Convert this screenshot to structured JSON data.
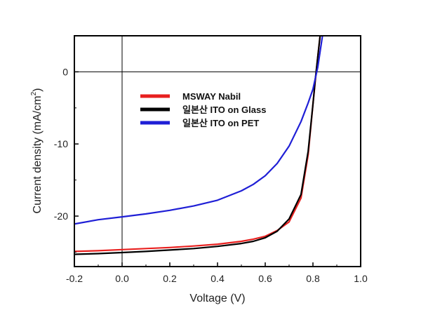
{
  "chart_data": {
    "type": "line",
    "title": "",
    "xlabel": "Voltage (V)",
    "ylabel": "Current density (mA/cm²)",
    "ylabel_main": "Current density (mA/cm",
    "ylabel_sup": "2",
    "ylabel_tail": ")",
    "xlim": [
      -0.2,
      1.0
    ],
    "ylim": [
      -27,
      5
    ],
    "x_ticks": [
      -0.2,
      0.0,
      0.2,
      0.4,
      0.6,
      0.8,
      1.0
    ],
    "x_tick_labels": [
      "-0.2",
      "0.0",
      "0.2",
      "0.4",
      "0.6",
      "0.8",
      "1.0"
    ],
    "y_ticks": [
      0,
      -10,
      -20
    ],
    "y_tick_labels": [
      "0",
      "-10",
      "-20"
    ],
    "zero_lines": true,
    "legend_position": "upper-center",
    "series": [
      {
        "name": "MSWAY Nabil",
        "color": "#e8201f",
        "x": [
          -0.2,
          -0.1,
          0.0,
          0.1,
          0.2,
          0.3,
          0.4,
          0.5,
          0.55,
          0.6,
          0.65,
          0.7,
          0.75,
          0.78,
          0.8,
          0.81,
          0.82,
          0.83
        ],
        "y": [
          -24.9,
          -24.8,
          -24.65,
          -24.5,
          -24.35,
          -24.15,
          -23.9,
          -23.5,
          -23.2,
          -22.8,
          -22.0,
          -20.8,
          -17.5,
          -11.5,
          -4.5,
          -1.2,
          2.0,
          5.0
        ]
      },
      {
        "name": "일본산 ITO on Glass",
        "color": "#000000",
        "x": [
          -0.2,
          -0.1,
          0.0,
          0.1,
          0.2,
          0.3,
          0.4,
          0.5,
          0.55,
          0.6,
          0.65,
          0.7,
          0.75,
          0.78,
          0.8,
          0.81,
          0.82,
          0.83
        ],
        "y": [
          -25.3,
          -25.2,
          -25.05,
          -24.9,
          -24.7,
          -24.5,
          -24.2,
          -23.8,
          -23.5,
          -23.0,
          -22.1,
          -20.4,
          -17.0,
          -11.0,
          -4.5,
          -1.0,
          2.0,
          5.0
        ]
      },
      {
        "name": "일본산 ITO on PET",
        "color": "#1f1fd6",
        "x": [
          -0.2,
          -0.1,
          0.0,
          0.1,
          0.2,
          0.3,
          0.4,
          0.5,
          0.55,
          0.6,
          0.65,
          0.7,
          0.75,
          0.78,
          0.8,
          0.82,
          0.84
        ],
        "y": [
          -21.1,
          -20.5,
          -20.1,
          -19.7,
          -19.2,
          -18.6,
          -17.8,
          -16.5,
          -15.6,
          -14.4,
          -12.7,
          -10.3,
          -6.9,
          -4.3,
          -2.4,
          0.6,
          5.0
        ]
      }
    ]
  }
}
